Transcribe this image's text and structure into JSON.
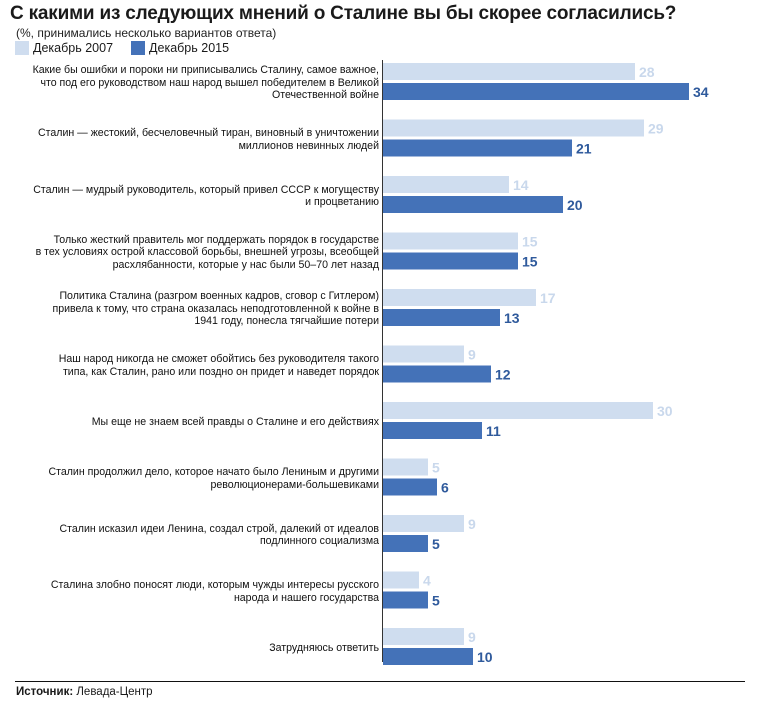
{
  "title": "С какими из следующих мнений о Сталине вы бы скорее согласились?",
  "subtitle": "(%, принимались несколько вариантов ответа)",
  "source_label": "Источник:",
  "source_value": "Левада-Центр",
  "colors": {
    "light": "#cfddef",
    "dark": "#4472b8",
    "light_text": "#c9d8ec",
    "dark_text": "#2f5a9c"
  },
  "chart_data": {
    "type": "bar",
    "orientation": "horizontal",
    "series": [
      {
        "name": "Декабрь 2007",
        "values": [
          28,
          29,
          14,
          15,
          17,
          9,
          30,
          5,
          9,
          4,
          9
        ]
      },
      {
        "name": "Декабрь 2015",
        "values": [
          34,
          21,
          20,
          15,
          13,
          12,
          11,
          6,
          5,
          5,
          10
        ]
      }
    ],
    "categories": [
      "Какие бы ошибки и пороки ни приписывались Сталину, самое важное, что под его руководством наш народ вышел победителем в Великой Отечественной войне",
      "Сталин — жестокий, бесчеловечный тиран, виновный в уничтожении миллионов невинных людей",
      "Сталин — мудрый руководитель, который привел СССР к могуществу и процветанию",
      "Только жесткий правитель мог поддержать порядок в государстве в тех условиях острой классовой борьбы, внешней угрозы, всеобщей расхлябанности, которые у нас были 50–70 лет назад",
      "Политика Сталина (разгром военных кадров, сговор с Гитлером) привела к тому, что страна оказалась неподготовленной к войне в 1941 году, понесла тягчайшие потери",
      "Наш народ никогда не сможет обойтись без руководителя такого типа, как Сталин, рано или поздно он придет и наведет порядок",
      "Мы еще не знаем всей правды о Сталине и его действиях",
      "Сталин продолжил дело, которое начато было Лениным и другими революционерами-большевиками",
      "Сталин исказил идеи Ленина, создал строй, далекий от идеалов подлинного социализма",
      "Сталина злобно поносят люди, которым чужды интересы русского народа и нашего государства",
      "Затрудняюсь ответить"
    ],
    "label_lines": [
      [
        "Какие бы ошибки и пороки ни приписывались Сталину, самое важное,",
        "что под его руководством наш народ вышел победителем в Великой",
        "Отечественной войне"
      ],
      [
        "Сталин — жестокий, бесчеловечный тиран, виновный в уничтожении",
        "миллионов невинных людей"
      ],
      [
        "Сталин — мудрый руководитель, который привел СССР к могуществу",
        "и процветанию"
      ],
      [
        "Только жесткий правитель мог поддержать порядок в государстве",
        "в тех условиях острой классовой борьбы, внешней угрозы, всеобщей",
        "расхлябанности, которые у нас были 50–70 лет назад"
      ],
      [
        "Политика Сталина (разгром военных кадров, сговор с Гитлером)",
        "привела к тому, что страна оказалась неподготовленной к войне в",
        "1941 году, понесла тягчайшие потери"
      ],
      [
        "Наш народ никогда не сможет обойтись без руководителя такого",
        "типа, как Сталин, рано или поздно он придет и наведет порядок"
      ],
      [
        "Мы еще не знаем всей правды о Сталине и его действиях"
      ],
      [
        "Сталин продолжил дело, которое начато было Лениным и другими",
        "революционерами-большевиками"
      ],
      [
        "Сталин исказил идеи Ленина, создал строй, далекий от идеалов",
        "подлинного социализма"
      ],
      [
        "Сталина злобно поносят люди, которым чужды интересы русского",
        "народа и нашего государства"
      ],
      [
        "Затрудняюсь ответить"
      ]
    ],
    "grid": false,
    "legend_position": "top-left",
    "xlim": [
      0,
      34
    ]
  }
}
